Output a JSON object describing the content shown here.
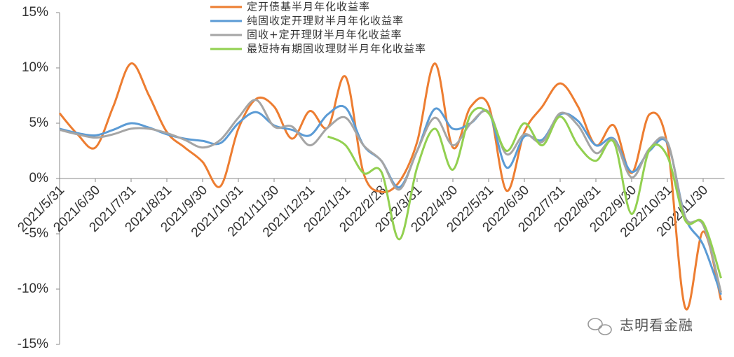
{
  "chart_data": {
    "type": "line",
    "categories": [
      "2021/5/31",
      null,
      "2021/6/30",
      null,
      "2021/7/31",
      null,
      "2021/8/31",
      null,
      "2021/9/30",
      null,
      "2021/10/31",
      null,
      "2021/11/30",
      null,
      "2021/12/31",
      null,
      "2022/1/31",
      null,
      "2022/2/28",
      null,
      "2022/3/31",
      null,
      "2022/4/30",
      null,
      "2022/5/31",
      null,
      "2022/6/30",
      null,
      "2022/7/31",
      null,
      "2022/8/31",
      null,
      "2022/9/30",
      null,
      "2022/10/31",
      null,
      "2022/11/30",
      null
    ],
    "series": [
      {
        "name": "定开债基半月年化收益率",
        "color": "#ed7d31",
        "values": [
          5.9,
          4.0,
          2.8,
          6.5,
          10.4,
          7.5,
          4.2,
          2.8,
          1.5,
          -0.7,
          4.5,
          7.2,
          6.5,
          3.6,
          6.1,
          4.6,
          9.2,
          0.5,
          -1.2,
          -0.3,
          3.3,
          10.4,
          2.8,
          6.5,
          6.6,
          -1.1,
          4.2,
          6.5,
          8.6,
          6.5,
          3.0,
          4.8,
          0.5,
          5.8,
          3.0,
          -11.7,
          -4.8,
          -11.0
        ]
      },
      {
        "name": "纯固收定开理财半月年化收益率",
        "color": "#5b9bd5",
        "values": [
          4.5,
          4.1,
          3.9,
          4.4,
          5.0,
          4.6,
          4.0,
          3.6,
          3.4,
          3.2,
          5.0,
          6.0,
          4.8,
          4.4,
          3.9,
          5.8,
          6.4,
          3.0,
          1.6,
          -0.8,
          2.5,
          6.3,
          4.5,
          5.0,
          6.0,
          1.0,
          3.8,
          3.5,
          5.8,
          5.2,
          3.0,
          3.6,
          0.6,
          2.5,
          3.2,
          -3.5,
          -6.0,
          -10.5
        ]
      },
      {
        "name": "固收+定开理财半月年化收益率",
        "color": "#a5a5a5",
        "values": [
          4.4,
          4.0,
          3.7,
          4.0,
          4.5,
          4.5,
          4.1,
          3.5,
          2.8,
          3.5,
          5.5,
          7.1,
          4.7,
          4.7,
          3.0,
          4.6,
          5.5,
          3.0,
          1.6,
          -1.0,
          2.5,
          5.5,
          3.0,
          5.0,
          6.0,
          2.2,
          4.0,
          3.3,
          5.9,
          4.8,
          2.3,
          3.5,
          0.1,
          2.7,
          3.3,
          -3.5,
          -4.2,
          -10.3
        ]
      },
      {
        "name": "最短持有期固收理财半月年化收益率",
        "color": "#92d050",
        "values": [
          null,
          null,
          null,
          null,
          null,
          null,
          null,
          null,
          null,
          null,
          null,
          null,
          null,
          null,
          null,
          3.8,
          3.0,
          0.5,
          0.6,
          -5.5,
          1.0,
          4.5,
          0.8,
          5.8,
          5.9,
          2.5,
          5.0,
          3.0,
          5.6,
          3.0,
          1.6,
          3.3,
          -3.2,
          2.6,
          2.0,
          -3.8,
          -4.0,
          -9.0
        ]
      }
    ],
    "ylim": [
      -15,
      15
    ],
    "yticks": [
      {
        "value": -15,
        "label": "-15%"
      },
      {
        "value": -10,
        "label": "-10%"
      },
      {
        "value": -5,
        "label": "-5%"
      },
      {
        "value": 0,
        "label": "0%"
      },
      {
        "value": 5,
        "label": "5%"
      },
      {
        "value": 10,
        "label": "10%"
      },
      {
        "value": 15,
        "label": "15%"
      }
    ],
    "watermark": "志明看金融"
  }
}
